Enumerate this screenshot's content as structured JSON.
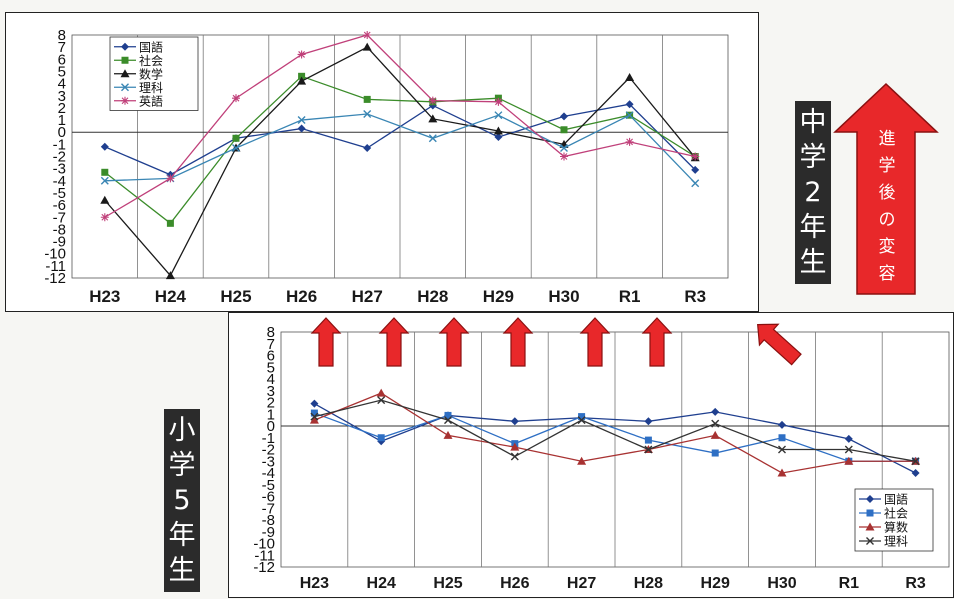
{
  "labels": {
    "middle_school": [
      "中",
      "学",
      "2",
      "年",
      "生"
    ],
    "elementary": [
      "小",
      "学",
      "5",
      "年",
      "生"
    ],
    "arrow": [
      "進",
      "学",
      "後",
      "の",
      "変",
      "容"
    ]
  },
  "colors": {
    "arrow_fill": "#e8282a",
    "arrow_stroke": "#8a1010"
  },
  "chart_data": [
    {
      "type": "line",
      "categories": [
        "H23",
        "H24",
        "H25",
        "H26",
        "H27",
        "H28",
        "H29",
        "H30",
        "R1",
        "R3"
      ],
      "y_ticks": [
        "8",
        "7",
        "6",
        "5",
        "4",
        "3",
        "2",
        "1",
        "0",
        "-1",
        "-2",
        "-3",
        "-4",
        "-5",
        "-6",
        "-7",
        "-8",
        "-9",
        "-10",
        "-11",
        "-12"
      ],
      "ylim": [
        -12,
        8
      ],
      "legend": "top-left",
      "series": [
        {
          "name": "国語",
          "color": "#1f3f8f",
          "marker": "diamond",
          "values": [
            -1.2,
            -3.5,
            -0.5,
            0.3,
            -1.3,
            2.2,
            -0.4,
            1.3,
            2.3,
            -3.1
          ]
        },
        {
          "name": "社会",
          "color": "#3b8c2a",
          "marker": "square",
          "values": [
            -3.3,
            -7.5,
            -0.5,
            4.6,
            2.7,
            2.5,
            2.8,
            0.2,
            1.4,
            -2.0
          ]
        },
        {
          "name": "数学",
          "color": "#1a1a1a",
          "marker": "triangle",
          "values": [
            -5.6,
            -11.8,
            -1.3,
            4.2,
            7.0,
            1.1,
            0.1,
            -1.0,
            4.5,
            -2.1
          ]
        },
        {
          "name": "理科",
          "color": "#3a86b4",
          "marker": "x",
          "values": [
            -4.0,
            -3.8,
            -1.3,
            1.0,
            1.5,
            -0.5,
            1.4,
            -1.3,
            1.4,
            -4.2
          ]
        },
        {
          "name": "英語",
          "color": "#c0407a",
          "marker": "star",
          "values": [
            -7.0,
            -3.8,
            2.8,
            6.4,
            8.0,
            2.6,
            2.5,
            -2.0,
            -0.8,
            -2.0
          ]
        }
      ]
    },
    {
      "type": "line",
      "categories": [
        "H23",
        "H24",
        "H25",
        "H26",
        "H27",
        "H28",
        "H29",
        "H30",
        "R1",
        "R3"
      ],
      "y_ticks": [
        "8",
        "7",
        "6",
        "5",
        "4",
        "3",
        "2",
        "1",
        "0",
        "-1",
        "-2",
        "-3",
        "-4",
        "-5",
        "-6",
        "-7",
        "-8",
        "-9",
        "-10",
        "-11",
        "-12"
      ],
      "ylim": [
        -12,
        8
      ],
      "legend": "bottom-right",
      "series": [
        {
          "name": "国語",
          "color": "#1f3f8f",
          "marker": "diamond",
          "values": [
            1.9,
            -1.3,
            0.9,
            0.4,
            0.7,
            0.4,
            1.2,
            0.1,
            -1.1,
            -4.0
          ]
        },
        {
          "name": "社会",
          "color": "#2e6fc4",
          "marker": "square",
          "values": [
            1.1,
            -1.0,
            0.9,
            -1.5,
            0.8,
            -1.2,
            -2.3,
            -1.0,
            -3.0,
            -3.0
          ]
        },
        {
          "name": "算数",
          "color": "#a83232",
          "marker": "triangle",
          "values": [
            0.5,
            2.8,
            -0.8,
            -1.8,
            -3.0,
            -2.0,
            -0.8,
            -4.0,
            -3.0,
            -3.0
          ]
        },
        {
          "name": "理科",
          "color": "#333333",
          "marker": "x",
          "values": [
            0.8,
            2.2,
            0.5,
            -2.6,
            0.5,
            -2.0,
            0.2,
            -2.0,
            -2.0,
            -3.0
          ]
        }
      ]
    }
  ]
}
